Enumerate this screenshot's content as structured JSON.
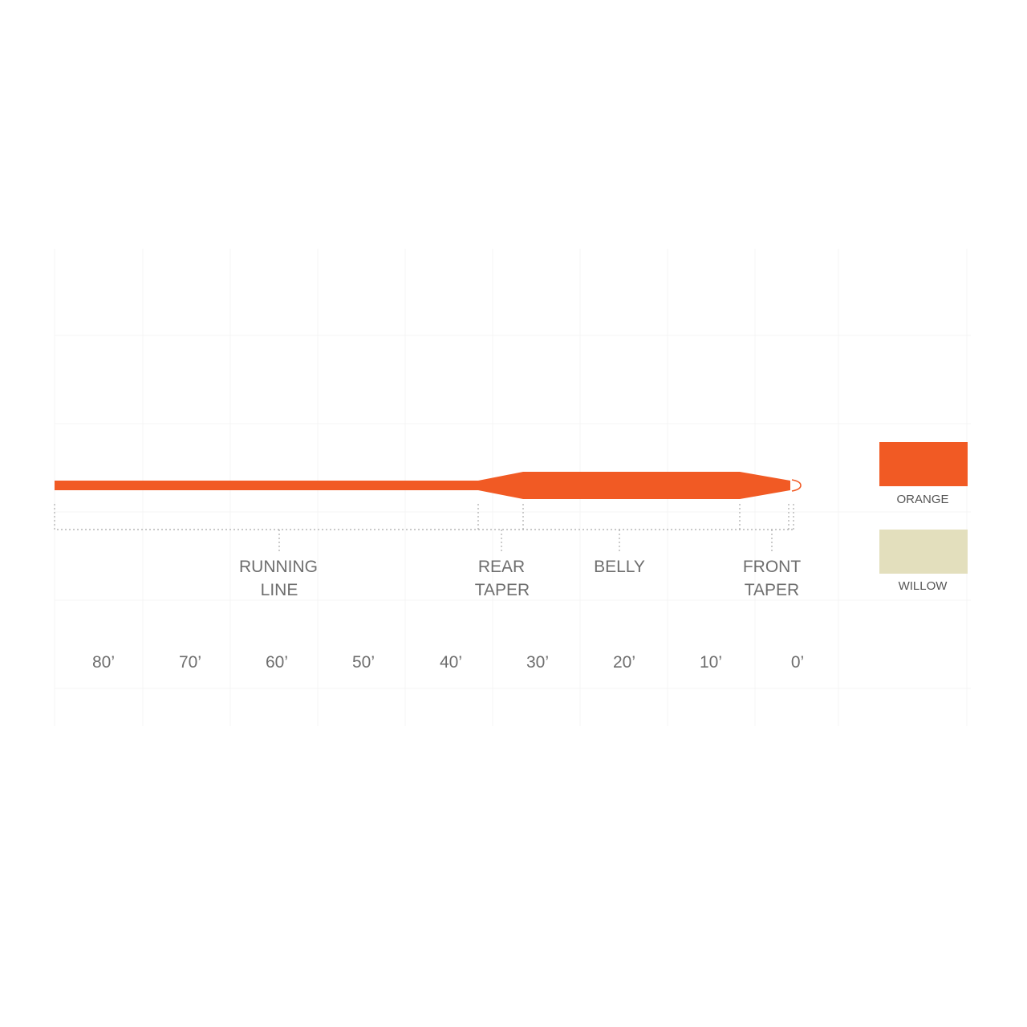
{
  "diagram": {
    "line_color": "#f15a24",
    "sections": [
      {
        "label_line1": "RUNNING",
        "label_line2": "LINE"
      },
      {
        "label_line1": "REAR",
        "label_line2": "TAPER"
      },
      {
        "label_line1": "BELLY",
        "label_line2": ""
      },
      {
        "label_line1": "FRONT",
        "label_line2": "TAPER"
      }
    ],
    "scale_ticks": [
      "80’",
      "70’",
      "60’",
      "50’",
      "40’",
      "30’",
      "20’",
      "10’",
      "0’"
    ]
  },
  "legend": {
    "swatches": [
      {
        "label": "ORANGE",
        "color": "#f15a24"
      },
      {
        "label": "WILLOW",
        "color": "#e3dfbd"
      }
    ]
  }
}
